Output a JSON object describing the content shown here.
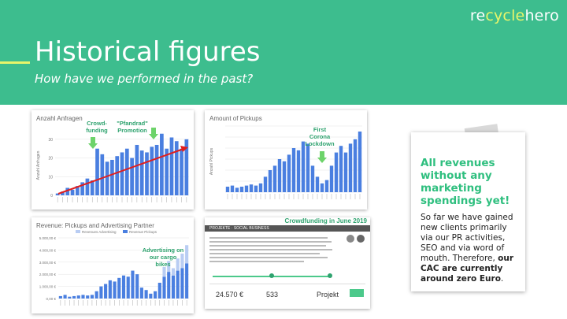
{
  "brand": {
    "logo_a": "re",
    "logo_b": "cycle",
    "logo_c": "hero"
  },
  "header": {
    "title": "Historical figures",
    "subtitle": "How have we performed in the past?"
  },
  "chart1": {
    "title": "Anzahl Anfragen",
    "ylabel": "Anzahl Anfragen",
    "yticks": [
      "0",
      "10",
      "20",
      "30"
    ],
    "annotations": {
      "crowdfunding": "Crowd-\nfunding",
      "pfandrad": "\"Pfandrad\"\nPromotion"
    }
  },
  "chart2": {
    "title": "Amount of Pickups",
    "ylabel": "Anzahl Pickups",
    "annotation": "First\nCorona\nLockdown"
  },
  "chart3": {
    "title": "Revenue: Pickups and Advertising Partner",
    "legend": [
      "Revenues Advertising",
      "Revenue Pickups"
    ],
    "yticks": [
      "0,00 €",
      "1.000,00 €",
      "2.000,00 €",
      "3.000,00 €",
      "4.000,00 €",
      "5.000,00 €"
    ],
    "annotation": "Advertising on\nour cargo\nbikes"
  },
  "crowdfunding_card": {
    "label": "Crowdfunding in June 2019",
    "tag": "PROJEKTE · SOCIAL BUSINESS",
    "amount": "24.570 €",
    "supporters": "533",
    "status": "Projekt"
  },
  "side": {
    "headline": "All revenues without any marketing spendings yet!",
    "body_pre": "So far we have gained new clients primarily via our PR activities, SEO and via word of mouth. Therefore, ",
    "body_bold": "our CAC are currently around zero Euro",
    "body_post": "."
  },
  "chart_data": [
    {
      "type": "bar",
      "title": "Anzahl Anfragen",
      "ylabel": "Anzahl Anfragen",
      "ylim": [
        0,
        35
      ],
      "values": [
        1,
        2,
        4,
        3,
        5,
        7,
        9,
        8,
        25,
        22,
        18,
        19,
        21,
        23,
        25,
        20,
        27,
        24,
        23,
        26,
        27,
        33,
        25,
        31,
        29,
        25,
        30
      ],
      "color": "#4a7fe0"
    },
    {
      "type": "bar",
      "title": "Amount of Pickups",
      "ylabel": "Anzahl Pickups",
      "values": [
        5,
        6,
        4,
        5,
        6,
        7,
        6,
        8,
        14,
        20,
        24,
        30,
        28,
        34,
        40,
        38,
        46,
        44,
        24,
        14,
        8,
        11,
        24,
        36,
        42,
        36,
        44,
        48,
        55
      ],
      "color": "#4a7fe0"
    },
    {
      "type": "bar",
      "title": "Revenue: Pickups and Advertising Partner",
      "series": [
        {
          "name": "Revenue Pickups",
          "values": [
            200,
            300,
            150,
            200,
            250,
            300,
            250,
            300,
            600,
            1000,
            1200,
            1500,
            1400,
            1700,
            1900,
            1800,
            2300,
            2000,
            900,
            700,
            400,
            600,
            1300,
            1800,
            2200,
            1900,
            2300,
            2500,
            2900
          ]
        },
        {
          "name": "Revenues Advertising",
          "values": [
            0,
            0,
            0,
            0,
            0,
            0,
            0,
            0,
            0,
            0,
            0,
            0,
            0,
            0,
            0,
            0,
            0,
            0,
            0,
            0,
            0,
            0,
            0,
            800,
            900,
            600,
            1000,
            1200,
            1500
          ]
        }
      ],
      "ylim": [
        0,
        5000
      ]
    }
  ]
}
